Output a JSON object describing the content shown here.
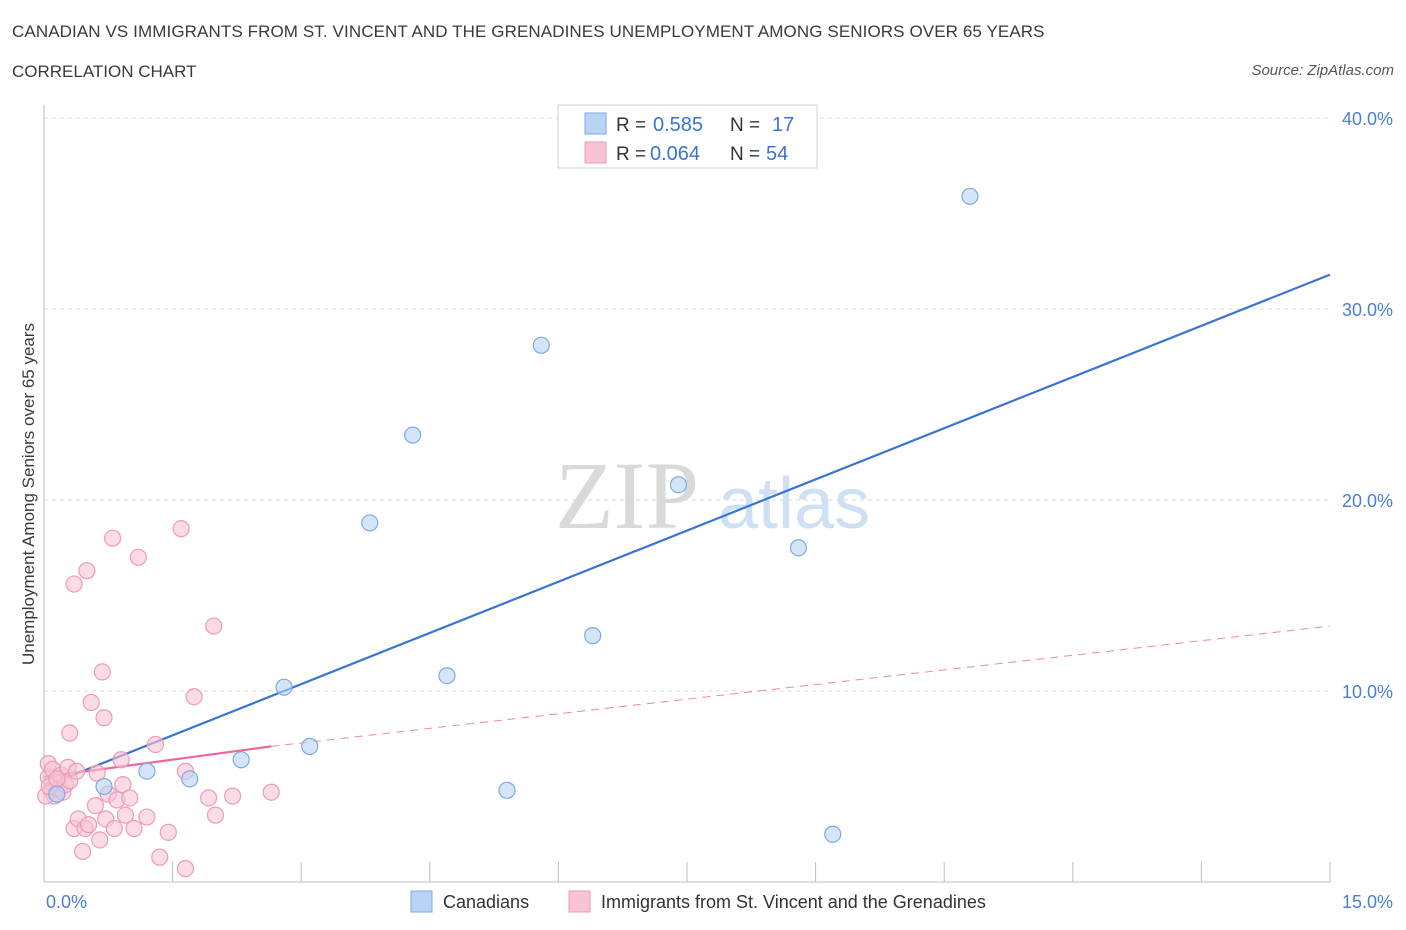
{
  "header": {
    "title": "CANADIAN VS IMMIGRANTS FROM ST. VINCENT AND THE GRENADINES UNEMPLOYMENT AMONG SENIORS OVER 65 YEARS",
    "subtitle": "CORRELATION CHART",
    "source": "Source: ZipAtlas.com"
  },
  "watermark": {
    "zip": "ZIP",
    "atlas": "atlas"
  },
  "colors": {
    "blue": "#3a74d0",
    "blue_fill": "#b9d3f5",
    "pink": "#e8689a",
    "pink_fill": "#f8c3d4",
    "grid": "#d8d8d8"
  },
  "legend": {
    "rows": [
      {
        "r_label": "R =",
        "r_value": "0.585",
        "n_label": "N =",
        "n_value": "17"
      },
      {
        "r_label": "R =",
        "r_value": "0.064",
        "n_label": "N =",
        "n_value": "54"
      }
    ]
  },
  "chart_data": {
    "type": "scatter",
    "title": "CANADIAN VS IMMIGRANTS FROM ST. VINCENT AND THE GRENADINES UNEMPLOYMENT AMONG SENIORS OVER 65 YEARS",
    "xlabel": "",
    "ylabel": "Unemployment Among Seniors over 65 years",
    "xlim": [
      0,
      15
    ],
    "ylim": [
      0,
      40
    ],
    "x_tick_labels": [
      "0.0%",
      "15.0%"
    ],
    "y_ticks": [
      10,
      20,
      30,
      40
    ],
    "y_tick_labels": [
      "10.0%",
      "20.0%",
      "30.0%",
      "40.0%"
    ],
    "grid": true,
    "series": [
      {
        "name": "Canadians",
        "points": [
          [
            0.15,
            4.6
          ],
          [
            0.7,
            5.0
          ],
          [
            1.2,
            5.8
          ],
          [
            1.7,
            5.4
          ],
          [
            2.3,
            6.4
          ],
          [
            2.8,
            10.2
          ],
          [
            3.1,
            7.1
          ],
          [
            3.8,
            18.8
          ],
          [
            4.3,
            23.4
          ],
          [
            4.7,
            10.8
          ],
          [
            5.4,
            4.8
          ],
          [
            5.8,
            28.1
          ],
          [
            6.4,
            12.9
          ],
          [
            7.4,
            20.8
          ],
          [
            8.8,
            17.5
          ],
          [
            9.2,
            2.5
          ],
          [
            10.8,
            35.9
          ]
        ],
        "trend": {
          "x": [
            0.0,
            15.0
          ],
          "y": [
            5.0,
            31.8
          ],
          "style": "solid"
        }
      },
      {
        "name": "Immigrants from St. Vincent and the Grenadines",
        "points": [
          [
            0.05,
            5.5
          ],
          [
            0.05,
            6.2
          ],
          [
            0.08,
            4.8
          ],
          [
            0.1,
            5.9
          ],
          [
            0.12,
            4.5
          ],
          [
            0.15,
            5.2
          ],
          [
            0.18,
            4.9
          ],
          [
            0.2,
            5.6
          ],
          [
            0.22,
            4.7
          ],
          [
            0.25,
            5.1
          ],
          [
            0.28,
            6.0
          ],
          [
            0.3,
            7.8
          ],
          [
            0.3,
            5.3
          ],
          [
            0.35,
            15.6
          ],
          [
            0.35,
            2.8
          ],
          [
            0.38,
            5.8
          ],
          [
            0.4,
            3.3
          ],
          [
            0.45,
            1.6
          ],
          [
            0.48,
            2.8
          ],
          [
            0.5,
            16.3
          ],
          [
            0.52,
            3.0
          ],
          [
            0.55,
            9.4
          ],
          [
            0.6,
            4.0
          ],
          [
            0.62,
            5.7
          ],
          [
            0.65,
            2.2
          ],
          [
            0.68,
            11.0
          ],
          [
            0.7,
            8.6
          ],
          [
            0.72,
            3.3
          ],
          [
            0.75,
            4.6
          ],
          [
            0.8,
            18.0
          ],
          [
            0.82,
            2.8
          ],
          [
            0.85,
            4.3
          ],
          [
            0.9,
            6.4
          ],
          [
            0.92,
            5.1
          ],
          [
            0.95,
            3.5
          ],
          [
            1.0,
            4.4
          ],
          [
            1.05,
            2.8
          ],
          [
            1.1,
            17.0
          ],
          [
            1.2,
            3.4
          ],
          [
            1.3,
            7.2
          ],
          [
            1.35,
            1.3
          ],
          [
            1.45,
            2.6
          ],
          [
            1.6,
            18.5
          ],
          [
            1.65,
            0.7
          ],
          [
            1.65,
            5.8
          ],
          [
            1.75,
            9.7
          ],
          [
            1.92,
            4.4
          ],
          [
            1.98,
            13.4
          ],
          [
            2.0,
            3.5
          ],
          [
            2.2,
            4.5
          ],
          [
            0.02,
            4.5
          ],
          [
            0.06,
            5.0
          ],
          [
            0.15,
            5.4
          ],
          [
            2.65,
            4.7
          ]
        ],
        "trend": {
          "x": [
            0.0,
            2.65
          ],
          "y": [
            5.5,
            7.1
          ],
          "style": "solid"
        },
        "trend_extension": {
          "x": [
            2.65,
            15.0
          ],
          "y": [
            7.1,
            13.4
          ],
          "style": "dashed"
        }
      }
    ]
  },
  "bottom_legend": {
    "items": [
      {
        "label": "Canadians"
      },
      {
        "label": "Immigrants from St. Vincent and the Grenadines"
      }
    ]
  }
}
